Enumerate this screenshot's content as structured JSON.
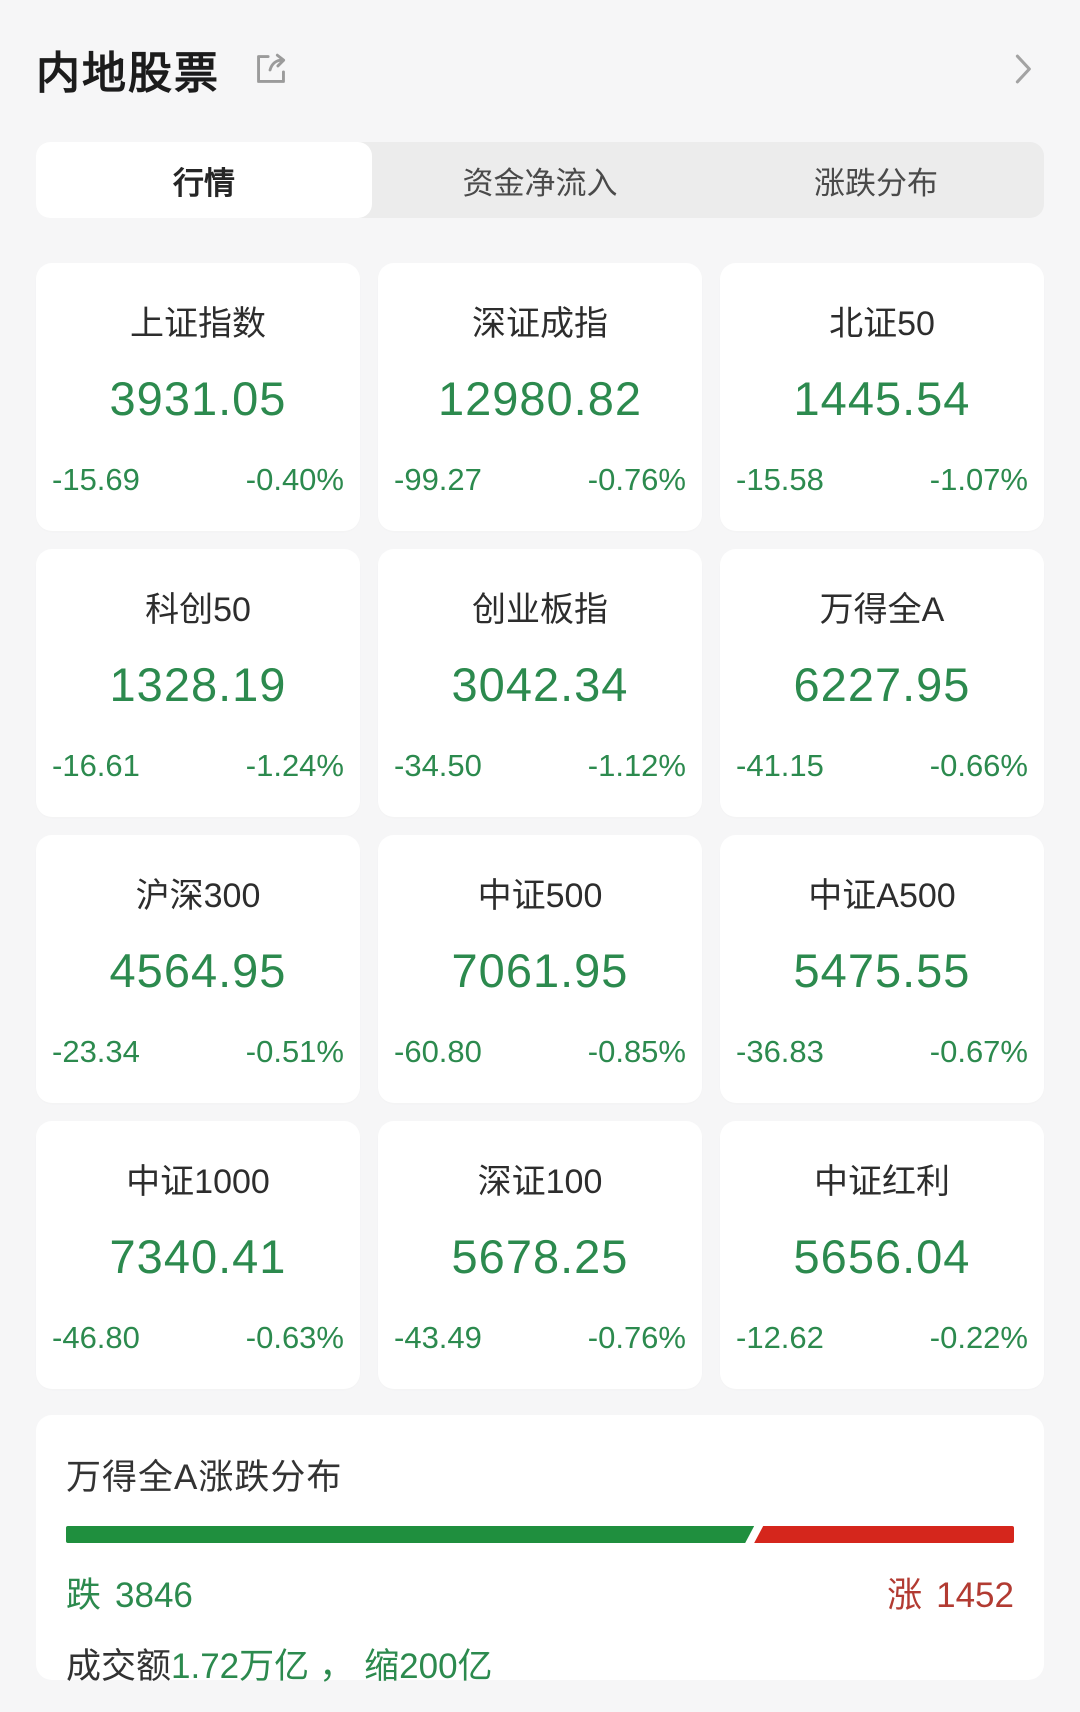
{
  "header": {
    "title": "内地股票"
  },
  "tabs": [
    {
      "label": "行情",
      "active": true
    },
    {
      "label": "资金净流入",
      "active": false
    },
    {
      "label": "涨跌分布",
      "active": false
    }
  ],
  "indices": [
    {
      "name": "上证指数",
      "price": "3931.05",
      "change": "-15.69",
      "change_pct": "-0.40%"
    },
    {
      "name": "深证成指",
      "price": "12980.82",
      "change": "-99.27",
      "change_pct": "-0.76%"
    },
    {
      "name": "北证50",
      "price": "1445.54",
      "change": "-15.58",
      "change_pct": "-1.07%"
    },
    {
      "name": "科创50",
      "price": "1328.19",
      "change": "-16.61",
      "change_pct": "-1.24%"
    },
    {
      "name": "创业板指",
      "price": "3042.34",
      "change": "-34.50",
      "change_pct": "-1.12%"
    },
    {
      "name": "万得全A",
      "price": "6227.95",
      "change": "-41.15",
      "change_pct": "-0.66%"
    },
    {
      "name": "沪深300",
      "price": "4564.95",
      "change": "-23.34",
      "change_pct": "-0.51%"
    },
    {
      "name": "中证500",
      "price": "7061.95",
      "change": "-60.80",
      "change_pct": "-0.85%"
    },
    {
      "name": "中证A500",
      "price": "5475.55",
      "change": "-36.83",
      "change_pct": "-0.67%"
    },
    {
      "name": "中证1000",
      "price": "7340.41",
      "change": "-46.80",
      "change_pct": "-0.63%"
    },
    {
      "name": "深证100",
      "price": "5678.25",
      "change": "-43.49",
      "change_pct": "-0.76%"
    },
    {
      "name": "中证红利",
      "price": "5656.04",
      "change": "-12.62",
      "change_pct": "-0.22%"
    }
  ],
  "distribution": {
    "title": "万得全A涨跌分布",
    "down_label": "跌",
    "down_count": 3846,
    "up_label": "涨",
    "up_count": 1452,
    "turnover_label": "成交额",
    "turnover_value": "1.72万亿",
    "separator": "，",
    "shrink_value": "缩200亿"
  },
  "colors": {
    "text_green": "#2c8a4e",
    "text_red": "#b23b32",
    "bar_green": "#1f8f3e",
    "bar_red": "#d5261c",
    "page_bg": "#f6f6f7",
    "card_bg": "#ffffff",
    "tabbar_bg": "#ececec"
  }
}
